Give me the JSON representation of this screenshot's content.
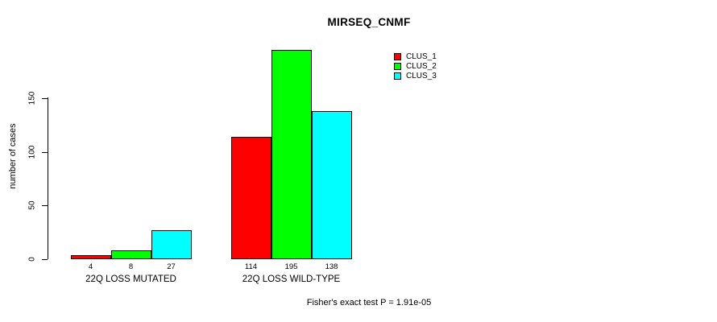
{
  "title": "MIRSEQ_CNMF",
  "footer": "Fisher's exact test P = 1.91e-05",
  "chart_data": {
    "type": "bar",
    "title": "MIRSEQ_CNMF",
    "xlabel": "",
    "ylabel": "number of cases",
    "categories": [
      "22Q LOSS MUTATED",
      "22Q LOSS WILD-TYPE"
    ],
    "series": [
      {
        "name": "CLUS_1",
        "color": "#FF0000",
        "values": [
          4,
          114
        ]
      },
      {
        "name": "CLUS_2",
        "color": "#00FF00",
        "values": [
          8,
          195
        ]
      },
      {
        "name": "CLUS_3",
        "color": "#00FFFF",
        "values": [
          27,
          138
        ]
      }
    ],
    "yticks": [
      0,
      50,
      100,
      150
    ],
    "ylim": [
      0,
      150
    ],
    "grid": false,
    "value_labels_shown": true,
    "legend_position": "top-right",
    "annotation": "Fisher's exact test P = 1.91e-05"
  }
}
